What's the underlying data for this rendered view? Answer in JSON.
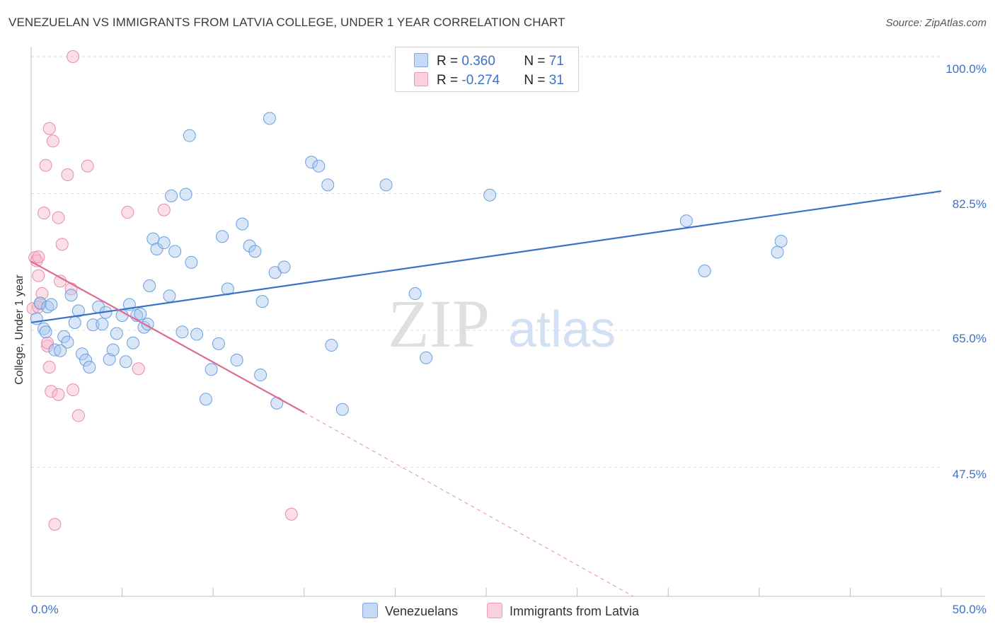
{
  "header": {
    "title": "VENEZUELAN VS IMMIGRANTS FROM LATVIA COLLEGE, UNDER 1 YEAR CORRELATION CHART",
    "source": "Source: ZipAtlas.com"
  },
  "watermark": {
    "zip": "ZIP",
    "atlas": "atlas"
  },
  "legend": {
    "venezuelans": {
      "r_label": "R = ",
      "r_value": "0.360",
      "n_label": "N = ",
      "n_value": "71",
      "color": "#a8c8f0"
    },
    "latvia": {
      "r_label": "R = ",
      "r_value": "-0.274",
      "n_label": "N = ",
      "n_value": "31",
      "color": "#f7b8cb"
    }
  },
  "bottom_legend": {
    "series1": "Venezuelans",
    "series2": "Immigrants from Latvia"
  },
  "chart_data": {
    "type": "scatter",
    "title": "VENEZUELAN VS IMMIGRANTS FROM LATVIA COLLEGE, UNDER 1 YEAR CORRELATION CHART",
    "xlabel": "",
    "ylabel": "College, Under 1 year",
    "xlim": [
      0,
      50
    ],
    "ylim": [
      31,
      100
    ],
    "x_tick_labels": [
      "0.0%",
      "50.0%"
    ],
    "y_ticks": [
      47.5,
      65.0,
      82.5,
      100.0
    ],
    "y_tick_labels": [
      "47.5%",
      "65.0%",
      "82.5%",
      "100.0%"
    ],
    "series": [
      {
        "name": "Venezuelans",
        "color": "#a8c8f0",
        "stroke": "#6a9fdc",
        "trend": {
          "x": [
            0,
            50
          ],
          "y": [
            66.0,
            82.8
          ],
          "color": "#3a72c8"
        },
        "points": [
          [
            0.3,
            66.5
          ],
          [
            0.5,
            68.5
          ],
          [
            0.7,
            65.2
          ],
          [
            0.8,
            64.8
          ],
          [
            0.9,
            68.0
          ],
          [
            1.1,
            68.3
          ],
          [
            1.3,
            62.5
          ],
          [
            1.6,
            62.4
          ],
          [
            1.8,
            64.2
          ],
          [
            2.0,
            63.5
          ],
          [
            2.2,
            69.5
          ],
          [
            2.4,
            66.0
          ],
          [
            2.6,
            67.5
          ],
          [
            2.8,
            62.0
          ],
          [
            3.0,
            61.2
          ],
          [
            3.2,
            60.3
          ],
          [
            3.4,
            65.7
          ],
          [
            3.7,
            68.0
          ],
          [
            3.9,
            65.8
          ],
          [
            4.1,
            67.3
          ],
          [
            4.3,
            61.3
          ],
          [
            4.5,
            62.5
          ],
          [
            4.7,
            64.6
          ],
          [
            5.0,
            66.9
          ],
          [
            5.2,
            61.0
          ],
          [
            5.4,
            68.3
          ],
          [
            5.6,
            63.4
          ],
          [
            5.8,
            66.9
          ],
          [
            6.0,
            67.1
          ],
          [
            6.2,
            65.4
          ],
          [
            6.4,
            65.8
          ],
          [
            6.5,
            70.7
          ],
          [
            6.7,
            76.7
          ],
          [
            6.9,
            75.4
          ],
          [
            7.3,
            76.2
          ],
          [
            7.6,
            69.4
          ],
          [
            7.7,
            82.2
          ],
          [
            7.9,
            75.1
          ],
          [
            8.3,
            64.8
          ],
          [
            8.5,
            82.4
          ],
          [
            8.7,
            89.9
          ],
          [
            8.8,
            73.7
          ],
          [
            9.1,
            64.5
          ],
          [
            9.6,
            56.2
          ],
          [
            9.9,
            60.0
          ],
          [
            10.3,
            63.3
          ],
          [
            10.5,
            77.0
          ],
          [
            10.8,
            70.3
          ],
          [
            11.3,
            61.2
          ],
          [
            11.6,
            78.6
          ],
          [
            12.0,
            75.8
          ],
          [
            12.3,
            75.1
          ],
          [
            12.6,
            59.3
          ],
          [
            12.7,
            68.7
          ],
          [
            13.1,
            92.1
          ],
          [
            13.4,
            72.4
          ],
          [
            13.5,
            55.7
          ],
          [
            13.9,
            73.1
          ],
          [
            15.4,
            86.5
          ],
          [
            15.8,
            86.0
          ],
          [
            16.3,
            83.6
          ],
          [
            16.5,
            63.1
          ],
          [
            17.1,
            54.9
          ],
          [
            19.5,
            83.6
          ],
          [
            21.1,
            69.7
          ],
          [
            21.7,
            61.5
          ],
          [
            25.2,
            82.3
          ],
          [
            36.0,
            79.0
          ],
          [
            37.0,
            72.6
          ],
          [
            41.0,
            75.0
          ],
          [
            41.2,
            76.4
          ]
        ]
      },
      {
        "name": "Immigrants from Latvia",
        "color": "#f7b8cb",
        "stroke": "#e98aa8",
        "trend": {
          "x": [
            0,
            15
          ],
          "y": [
            73.8,
            54.5
          ],
          "dashed_to": {
            "x": 50,
            "y": 9.0
          },
          "color": "#e06a92"
        },
        "points": [
          [
            0.1,
            67.8
          ],
          [
            0.2,
            74.3
          ],
          [
            0.3,
            73.9
          ],
          [
            0.4,
            74.4
          ],
          [
            0.4,
            72.0
          ],
          [
            0.5,
            68.4
          ],
          [
            0.6,
            69.7
          ],
          [
            0.7,
            80.0
          ],
          [
            0.8,
            86.1
          ],
          [
            0.9,
            63.0
          ],
          [
            1.0,
            60.3
          ],
          [
            1.0,
            90.8
          ],
          [
            1.1,
            57.2
          ],
          [
            1.2,
            89.2
          ],
          [
            1.3,
            40.2
          ],
          [
            1.5,
            79.4
          ],
          [
            1.5,
            56.8
          ],
          [
            1.6,
            71.3
          ],
          [
            1.7,
            76.0
          ],
          [
            2.0,
            84.9
          ],
          [
            2.2,
            70.3
          ],
          [
            2.3,
            57.4
          ],
          [
            2.6,
            54.1
          ],
          [
            3.1,
            86.0
          ],
          [
            5.3,
            80.1
          ],
          [
            5.9,
            60.1
          ],
          [
            7.3,
            80.4
          ],
          [
            14.3,
            41.5
          ],
          [
            2.3,
            100.0
          ],
          [
            0.4,
            68.0
          ],
          [
            0.9,
            63.4
          ]
        ]
      }
    ]
  }
}
